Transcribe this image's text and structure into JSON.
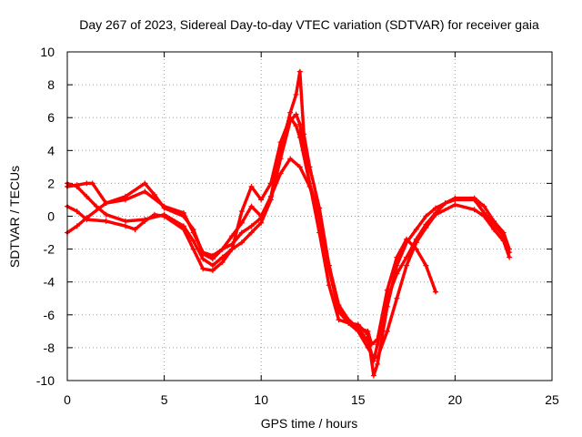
{
  "chart_data": {
    "type": "scatter",
    "title": "Day 267 of 2023, Sidereal Day-to-day VTEC variation (SDTVAR) for receiver gaia",
    "xlabel": "GPS time / hours",
    "ylabel": "SDTVAR / TECUs",
    "xlim": [
      0,
      25
    ],
    "ylim": [
      -10,
      10
    ],
    "xticks": [
      "0",
      "5",
      "10",
      "15",
      "20",
      "25"
    ],
    "yticks": [
      "10",
      "8",
      "6",
      "4",
      "2",
      "0",
      "-2",
      "-4",
      "-6",
      "-8",
      "-10"
    ],
    "grid": true,
    "marker": "+",
    "color": "#ff0000",
    "series": [
      {
        "name": "satellite-track-1",
        "x": [
          0,
          0.5,
          1,
          1.5,
          2,
          3,
          4,
          5,
          6,
          6.5,
          7,
          7.5,
          8,
          8.5,
          9,
          9.5,
          10,
          10.5,
          11,
          11.5,
          11.8,
          12,
          12.2,
          12.5,
          13,
          13.5,
          14,
          14.5,
          15,
          15.5,
          15.8,
          16,
          16.5,
          17,
          17.5,
          18,
          18.5,
          19,
          20,
          21,
          21.5,
          22,
          22.5,
          22.8
        ],
        "y": [
          2.0,
          1.8,
          1.2,
          0.6,
          0.1,
          -0.3,
          -0.2,
          0.1,
          -0.6,
          -1.5,
          -2.6,
          -3.0,
          -2.5,
          -2.0,
          -1.6,
          -1.0,
          -0.4,
          1.0,
          3.5,
          5.8,
          6.2,
          5.6,
          4.0,
          2.0,
          -1.0,
          -4.2,
          -6.3,
          -6.5,
          -7.0,
          -8.0,
          -8.6,
          -8.6,
          -7.0,
          -5.0,
          -3.0,
          -1.6,
          -0.7,
          0.1,
          0.7,
          0.4,
          0.0,
          -0.8,
          -1.5,
          -2.5
        ]
      },
      {
        "name": "satellite-track-2",
        "x": [
          0,
          0.5,
          1,
          2,
          3,
          4,
          5,
          6,
          6.5,
          7,
          7.5,
          8,
          8.5,
          9,
          9.5,
          10,
          10.5,
          11,
          11.5,
          11.8,
          12,
          12.2,
          12.5,
          13,
          13.5,
          14,
          14.5,
          15,
          15.5,
          15.8,
          16,
          16.5,
          17,
          17.5,
          18,
          18.5,
          19,
          20,
          21,
          21.5,
          22,
          22.5,
          22.8
        ],
        "y": [
          -1.0,
          -0.6,
          -0.1,
          0.8,
          1.0,
          1.5,
          0.6,
          0.2,
          -1.0,
          -2.2,
          -2.4,
          -2.0,
          -1.7,
          -1.0,
          -0.6,
          -0.1,
          1.2,
          4.0,
          6.3,
          7.4,
          8.8,
          5.0,
          3.0,
          0.5,
          -3.0,
          -5.6,
          -6.5,
          -6.6,
          -7.2,
          -9.7,
          -9.0,
          -5.5,
          -3.0,
          -1.6,
          -0.8,
          0.0,
          0.5,
          1.1,
          1.1,
          0.6,
          -0.3,
          -1.0,
          -2.0
        ]
      },
      {
        "name": "satellite-track-3",
        "x": [
          0,
          0.5,
          1,
          2,
          3,
          3.5,
          4,
          4.5,
          5,
          6,
          6.5,
          7,
          7.5,
          8,
          8.5,
          9,
          9.5,
          10,
          10.5,
          11,
          11.5,
          11.8,
          12,
          12.5,
          13,
          13.5,
          14,
          14.5,
          15,
          15.5,
          15.8,
          16,
          16.5,
          17,
          17.5,
          18,
          18.5,
          19,
          19.5,
          20,
          21,
          21.5,
          22,
          22.5,
          22.8
        ],
        "y": [
          0.6,
          0.3,
          -0.2,
          -0.3,
          -0.6,
          -0.8,
          -0.3,
          0.1,
          0.0,
          -0.8,
          -2.0,
          -3.2,
          -3.3,
          -2.8,
          -2.0,
          0.3,
          1.8,
          1.0,
          2.0,
          4.5,
          6.0,
          5.5,
          4.8,
          2.0,
          0.0,
          -3.0,
          -5.4,
          -6.3,
          -6.8,
          -7.6,
          -8.8,
          -7.8,
          -5.0,
          -3.5,
          -2.5,
          -1.4,
          -0.5,
          0.2,
          0.8,
          1.0,
          1.0,
          0.2,
          -0.5,
          -1.2,
          -2.2
        ]
      },
      {
        "name": "satellite-track-4",
        "x": [
          0,
          0.5,
          1,
          1.3,
          2,
          3,
          4,
          4.5,
          5,
          6,
          6.5,
          7,
          7.5,
          8,
          8.5,
          9,
          9.5,
          10,
          10.5,
          11,
          11.5,
          12,
          12.5,
          13,
          13.5,
          14,
          14.5,
          15,
          15.5,
          15.7,
          16,
          16.5,
          17,
          17.5,
          18,
          18.5,
          19
        ],
        "y": [
          1.8,
          1.9,
          2.0,
          2.0,
          0.8,
          1.2,
          2.0,
          1.3,
          0.5,
          0.0,
          -0.8,
          -2.3,
          -2.6,
          -2.0,
          -1.2,
          -0.4,
          0.6,
          0.0,
          1.2,
          2.6,
          3.5,
          3.0,
          1.8,
          0.0,
          -3.2,
          -5.8,
          -6.5,
          -6.8,
          -7.0,
          -7.8,
          -7.5,
          -4.5,
          -2.5,
          -1.4,
          -2.0,
          -3.0,
          -4.6
        ]
      }
    ]
  }
}
